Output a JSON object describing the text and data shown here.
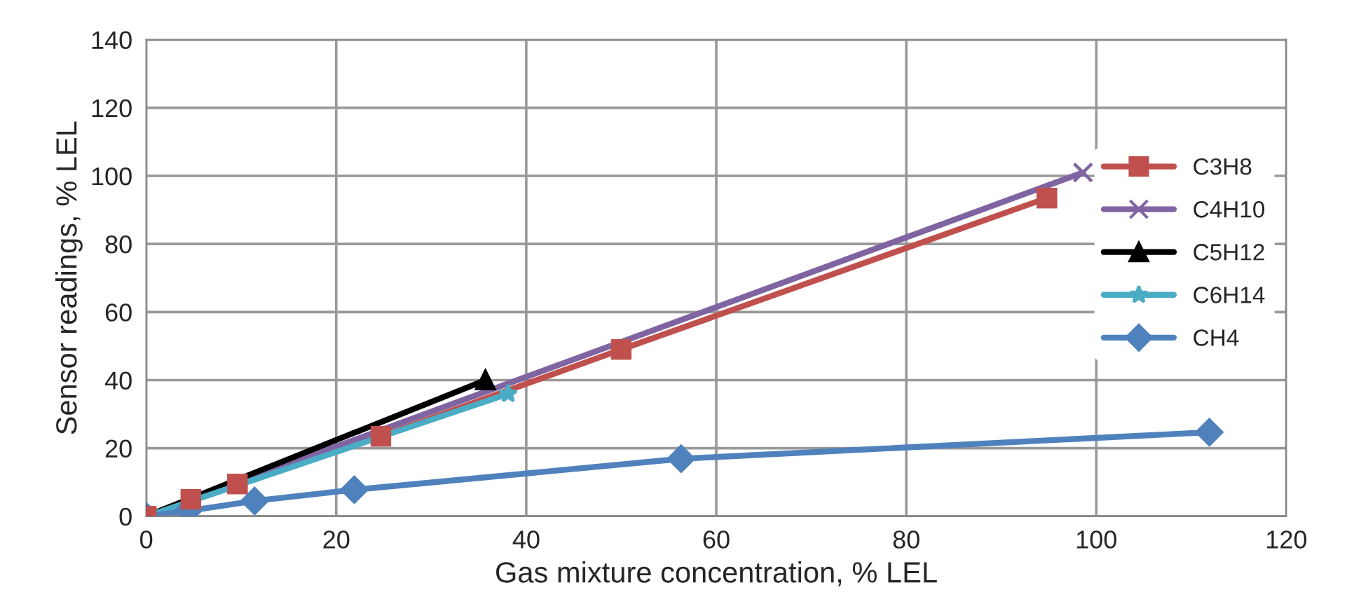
{
  "chart_data": {
    "type": "line",
    "xlabel": "Gas mixture concentration, % LEL",
    "ylabel": "Sensor readings, % LEL",
    "xlim": [
      0,
      120
    ],
    "xticks": [
      0,
      20,
      40,
      60,
      80,
      100,
      120
    ],
    "ylim": [
      0,
      140
    ],
    "yticks": [
      0,
      20,
      40,
      60,
      80,
      100,
      120,
      140
    ],
    "grid": true,
    "legend": "right",
    "line_style": "solid",
    "series": [
      {
        "name": "C3H8",
        "color": "#c0504d",
        "marker": "square",
        "x": [
          0,
          4.7,
          9.6,
          24.7,
          50,
          94.8
        ],
        "values": [
          0,
          5,
          9.5,
          23.5,
          49,
          93.5
        ]
      },
      {
        "name": "C4H10",
        "color": "#8064a2",
        "marker": "cross",
        "x": [
          0,
          98.6
        ],
        "values": [
          0,
          101
        ]
      },
      {
        "name": "C5H12",
        "color": "#000000",
        "marker": "triangle",
        "x": [
          0,
          35.7
        ],
        "values": [
          0,
          40
        ]
      },
      {
        "name": "C6H14",
        "color": "#4bacc6",
        "marker": "star",
        "x": [
          0,
          38.1
        ],
        "values": [
          0,
          36
        ]
      },
      {
        "name": "CH4",
        "color": "#4f81bd",
        "marker": "diamond",
        "x": [
          0,
          4.4,
          11.4,
          21.9,
          56.3,
          111.9
        ],
        "values": [
          0,
          1.6,
          4.5,
          7.8,
          16.9,
          24.7
        ]
      }
    ]
  }
}
